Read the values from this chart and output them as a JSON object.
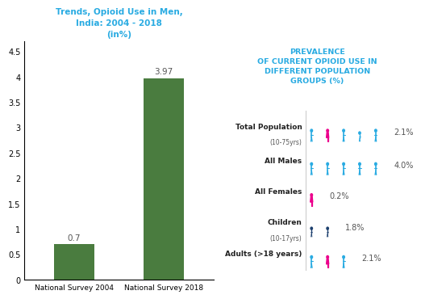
{
  "left_title": "Trends, Opioid Use in Men,\nIndia: 2004 - 2018\n(in%)",
  "left_title_color": "#29ABE2",
  "bar_labels": [
    "National Survey 2004",
    "National Survey 2018"
  ],
  "bar_values": [
    0.7,
    3.97
  ],
  "bar_color": "#4A7C3F",
  "ylim": [
    0,
    4.7
  ],
  "yticks": [
    0,
    0.5,
    1,
    1.5,
    2,
    2.5,
    3,
    3.5,
    4,
    4.5
  ],
  "right_title": "PREVALENCE\nOF CURRENT OPIOID USE IN\nDIFFERENT POPULATION\nGROUPS (%)",
  "right_title_color": "#29ABE2",
  "groups": [
    {
      "label": "Total Population",
      "sublabel": "(10-75yrs)",
      "value": "2.1%",
      "icons": [
        {
          "type": "male",
          "color": "#29ABE2"
        },
        {
          "type": "female",
          "color": "#EC008C"
        },
        {
          "type": "male",
          "color": "#29ABE2"
        },
        {
          "type": "child",
          "color": "#29ABE2"
        },
        {
          "type": "male",
          "color": "#29ABE2"
        }
      ]
    },
    {
      "label": "All Males",
      "sublabel": "",
      "value": "4.0%",
      "icons": [
        {
          "type": "male",
          "color": "#29ABE2"
        },
        {
          "type": "male",
          "color": "#29ABE2"
        },
        {
          "type": "male",
          "color": "#29ABE2"
        },
        {
          "type": "male",
          "color": "#29ABE2"
        },
        {
          "type": "male",
          "color": "#29ABE2"
        }
      ]
    },
    {
      "label": "All Females",
      "sublabel": "",
      "value": "0.2%",
      "icons": [
        {
          "type": "female",
          "color": "#EC008C"
        }
      ]
    },
    {
      "label": "Children",
      "sublabel": "(10-17yrs)",
      "value": "1.8%",
      "icons": [
        {
          "type": "child",
          "color": "#1C3F6E"
        },
        {
          "type": "child",
          "color": "#1C3F6E"
        }
      ]
    },
    {
      "label": "Adults (>18 years)",
      "sublabel": "",
      "value": "2.1%",
      "icons": [
        {
          "type": "male",
          "color": "#29ABE2"
        },
        {
          "type": "female",
          "color": "#EC008C"
        },
        {
          "type": "male",
          "color": "#29ABE2"
        }
      ]
    }
  ],
  "background_color": "#FFFFFF"
}
